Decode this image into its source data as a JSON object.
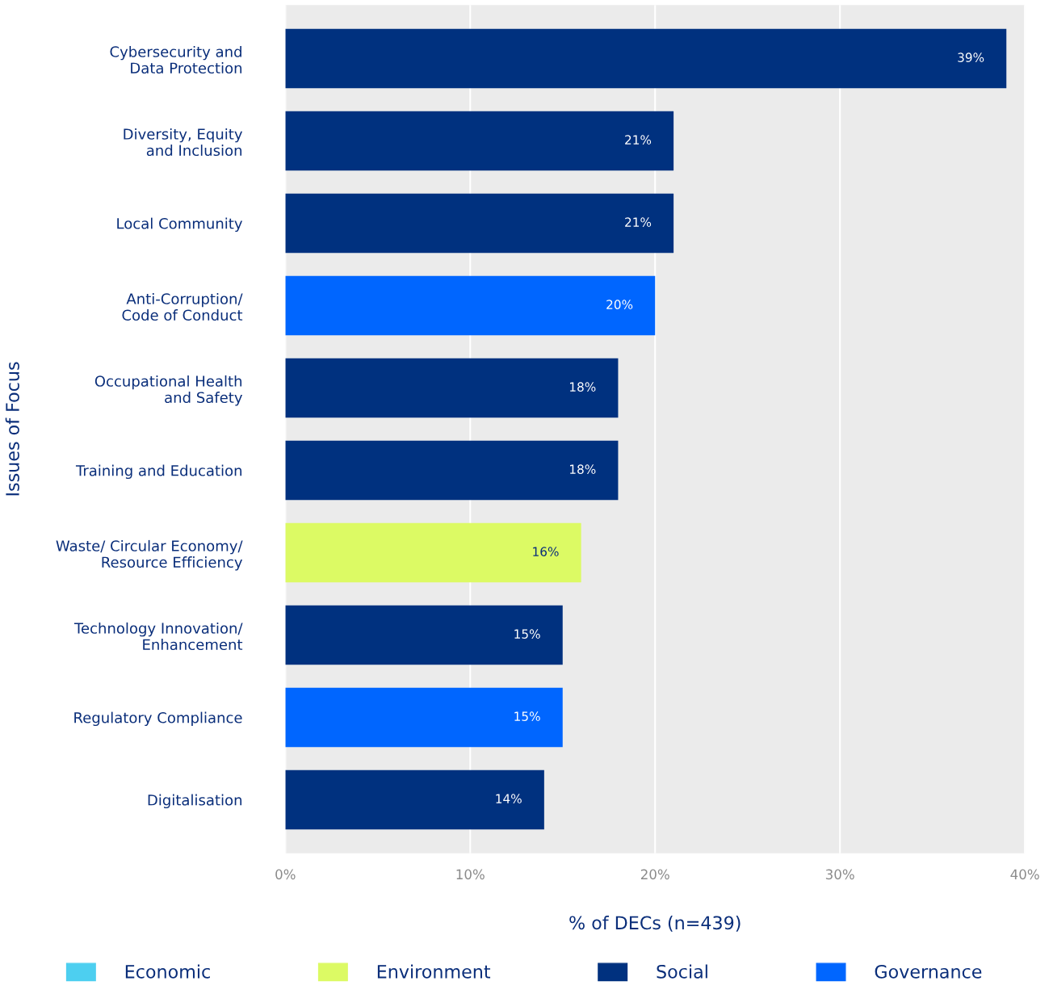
{
  "chart_data": {
    "type": "bar",
    "orientation": "horizontal",
    "stacked": true,
    "categories": [
      "Cybersecurity and\nData Protection",
      "Diversity, Equity\nand Inclusion",
      "Local Community",
      "Anti-Corruption/\nCode of Conduct",
      "Occupational Health\nand Safety",
      "Training and Education",
      "Waste/ Circular Economy/\nResource Efficiency",
      "Technology Innovation/\nEnhancement",
      "Regulatory Compliance",
      "Digitalisation"
    ],
    "series": [
      {
        "name": "Economic",
        "color": "#4dcff0",
        "values": [
          null,
          null,
          null,
          null,
          null,
          null,
          null,
          null,
          null,
          null
        ],
        "value_labels": [
          null,
          null,
          null,
          null,
          null,
          null,
          null,
          null,
          null,
          null
        ]
      },
      {
        "name": "Environment",
        "color": "#dcfa64",
        "values": [
          null,
          null,
          null,
          null,
          null,
          null,
          16,
          null,
          null,
          null
        ],
        "value_labels": [
          null,
          null,
          null,
          null,
          null,
          null,
          "16%",
          null,
          null,
          null
        ]
      },
      {
        "name": "Social",
        "color": "#00317f",
        "values": [
          39,
          21,
          21,
          null,
          18,
          18,
          null,
          15,
          null,
          14
        ],
        "value_labels": [
          "39%",
          "21%",
          "21%",
          null,
          "18%",
          "18%",
          null,
          "15%",
          null,
          "14%"
        ]
      },
      {
        "name": "Governance",
        "color": "#0066ff",
        "values": [
          null,
          null,
          null,
          20,
          null,
          null,
          null,
          null,
          15,
          null
        ],
        "value_labels": [
          null,
          null,
          null,
          "20%",
          null,
          null,
          null,
          null,
          "15%",
          null
        ]
      }
    ],
    "xlim": [
      0,
      40
    ],
    "xticks": [
      {
        "value": 0,
        "label": "0%"
      },
      {
        "value": 10,
        "label": "10%"
      },
      {
        "value": 20,
        "label": "20%"
      },
      {
        "value": 30,
        "label": "30%"
      },
      {
        "value": 40,
        "label": "40%"
      }
    ],
    "xlabel": "% of DECs (n=439)",
    "ylabel": "Issues of Focus",
    "grid": "x",
    "legend": "bottom"
  }
}
